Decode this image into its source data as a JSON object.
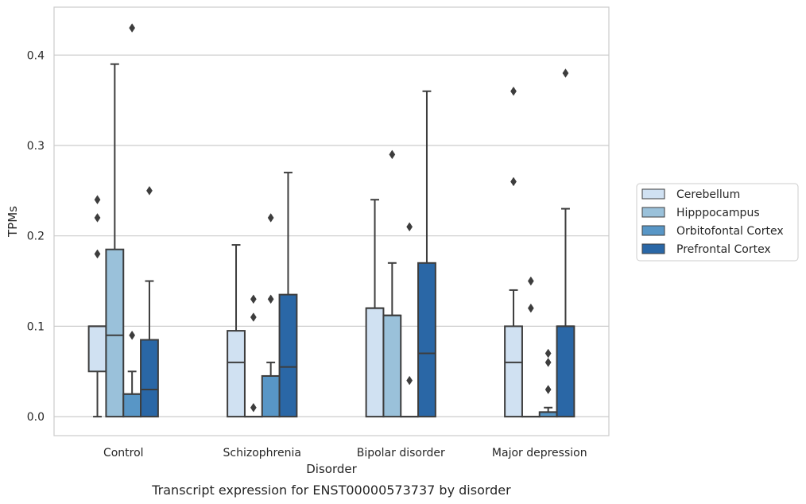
{
  "caption": "Transcript expression for ENST00000573737 by disorder",
  "chart_data": {
    "type": "box",
    "title": "",
    "xlabel": "Disorder",
    "ylabel": "TPMs",
    "ylim": [
      -0.021,
      0.453
    ],
    "yticks": [
      0.0,
      0.1,
      0.2,
      0.3,
      0.4
    ],
    "ytick_labels": [
      "0.0",
      "0.1",
      "0.2",
      "0.3",
      "0.4"
    ],
    "grid": "horizontal",
    "legend_placement": "right",
    "categories": [
      "Control",
      "Schizophrenia",
      "Bipolar disorder",
      "Major depression"
    ],
    "series": [
      {
        "name": "Cerebellum",
        "color": "#d0e1f2",
        "boxes": [
          {
            "q1": 0.05,
            "median": 0.1,
            "q3": 0.1,
            "whisker_low": 0.0,
            "whisker_high": 0.1,
            "outliers": [
              0.18,
              0.22,
              0.24
            ]
          },
          {
            "q1": 0.0,
            "median": 0.06,
            "q3": 0.095,
            "whisker_low": 0.0,
            "whisker_high": 0.19,
            "outliers": []
          },
          {
            "q1": 0.0,
            "median": 0.12,
            "q3": 0.12,
            "whisker_low": 0.0,
            "whisker_high": 0.24,
            "outliers": []
          },
          {
            "q1": 0.0,
            "median": 0.06,
            "q3": 0.1,
            "whisker_low": 0.0,
            "whisker_high": 0.14,
            "outliers": [
              0.26,
              0.36
            ]
          }
        ]
      },
      {
        "name": "Hipppocampus",
        "color": "#9ac1da",
        "boxes": [
          {
            "q1": 0.0,
            "median": 0.09,
            "q3": 0.185,
            "whisker_low": 0.0,
            "whisker_high": 0.39,
            "outliers": []
          },
          {
            "q1": 0.0,
            "median": 0.0,
            "q3": 0.0,
            "whisker_low": 0.0,
            "whisker_high": 0.0,
            "outliers": [
              0.01,
              0.11,
              0.13
            ]
          },
          {
            "q1": 0.0,
            "median": 0.112,
            "q3": 0.112,
            "whisker_low": 0.0,
            "whisker_high": 0.17,
            "outliers": [
              0.29
            ]
          },
          {
            "q1": 0.0,
            "median": 0.0,
            "q3": 0.0,
            "whisker_low": 0.0,
            "whisker_high": 0.0,
            "outliers": [
              0.12,
              0.15
            ]
          }
        ]
      },
      {
        "name": "Orbitofontal Cortex",
        "color": "#5896c6",
        "boxes": [
          {
            "q1": 0.0,
            "median": 0.025,
            "q3": 0.025,
            "whisker_low": 0.0,
            "whisker_high": 0.05,
            "outliers": [
              0.09,
              0.43
            ]
          },
          {
            "q1": 0.0,
            "median": 0.045,
            "q3": 0.045,
            "whisker_low": 0.0,
            "whisker_high": 0.06,
            "outliers": [
              0.13,
              0.22
            ]
          },
          {
            "q1": 0.0,
            "median": 0.0,
            "q3": 0.0,
            "whisker_low": 0.0,
            "whisker_high": 0.0,
            "outliers": [
              0.04,
              0.21
            ]
          },
          {
            "q1": 0.0,
            "median": 0.005,
            "q3": 0.005,
            "whisker_low": 0.0,
            "whisker_high": 0.01,
            "outliers": [
              0.03,
              0.06,
              0.07
            ]
          }
        ]
      },
      {
        "name": "Prefrontal Cortex",
        "color": "#2a67a6",
        "boxes": [
          {
            "q1": 0.0,
            "median": 0.03,
            "q3": 0.085,
            "whisker_low": 0.0,
            "whisker_high": 0.15,
            "outliers": [
              0.25
            ]
          },
          {
            "q1": 0.0,
            "median": 0.055,
            "q3": 0.135,
            "whisker_low": 0.0,
            "whisker_high": 0.27,
            "outliers": []
          },
          {
            "q1": 0.0,
            "median": 0.07,
            "q3": 0.17,
            "whisker_low": 0.0,
            "whisker_high": 0.36,
            "outliers": []
          },
          {
            "q1": 0.0,
            "median": 0.1,
            "q3": 0.1,
            "whisker_low": 0.0,
            "whisker_high": 0.23,
            "outliers": [
              0.38
            ]
          }
        ]
      }
    ]
  }
}
